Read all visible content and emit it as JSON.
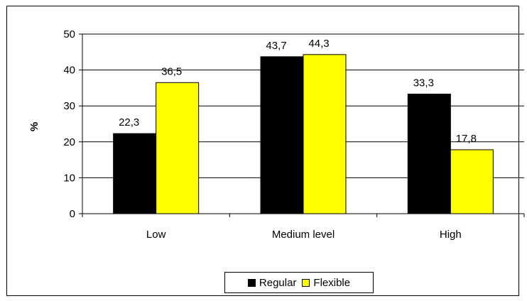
{
  "chart_data": {
    "type": "bar",
    "categories": [
      "Low",
      "Medium level",
      "High"
    ],
    "series": [
      {
        "name": "Regular",
        "values": [
          22.3,
          43.7,
          33.3
        ],
        "color": "#000000",
        "labels": [
          "22,3",
          "43,7",
          "33,3"
        ]
      },
      {
        "name": "Flexible",
        "values": [
          36.5,
          44.3,
          17.8
        ],
        "color": "#ffff00",
        "labels": [
          "36,5",
          "44,3",
          "17,8"
        ]
      }
    ],
    "ylabel": "%",
    "ylim": [
      0,
      50
    ],
    "yticks": [
      0,
      10,
      20,
      30,
      40,
      50
    ],
    "grid": true,
    "legend": "bottom"
  }
}
